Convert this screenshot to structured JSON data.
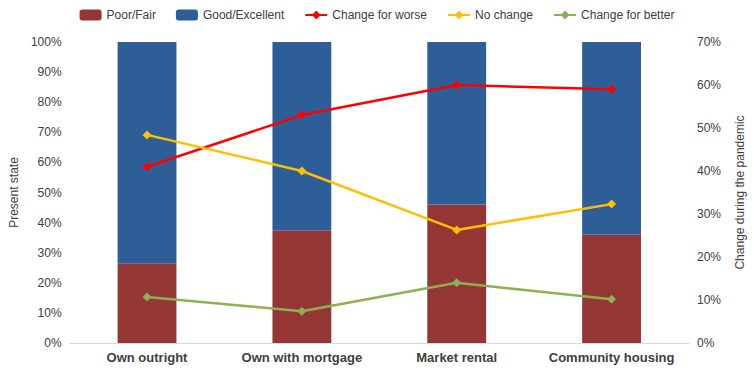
{
  "chart_data": {
    "type": "bar",
    "stacked": true,
    "grid": false,
    "legend": "top",
    "categories": [
      "Own outright",
      "Own with mortgage",
      "Market rental",
      "Community housing"
    ],
    "y_label": "Present state",
    "y2_label": "Change during the pandemic",
    "ylim": [
      0,
      100
    ],
    "yticks": [
      {
        "value": 0,
        "label": "0%"
      },
      {
        "value": 10,
        "label": "10%"
      },
      {
        "value": 20,
        "label": "20%"
      },
      {
        "value": 30,
        "label": "30%"
      },
      {
        "value": 40,
        "label": "40%"
      },
      {
        "value": 50,
        "label": "50%"
      },
      {
        "value": 60,
        "label": "60%"
      },
      {
        "value": 70,
        "label": "70%"
      },
      {
        "value": 80,
        "label": "80%"
      },
      {
        "value": 90,
        "label": "90%"
      },
      {
        "value": 100,
        "label": "100%"
      }
    ],
    "y2lim": [
      0,
      70
    ],
    "y2ticks": [
      {
        "value": 0,
        "label": "0%"
      },
      {
        "value": 10,
        "label": "10%"
      },
      {
        "value": 20,
        "label": "20%"
      },
      {
        "value": 30,
        "label": "30%"
      },
      {
        "value": 40,
        "label": "40%"
      },
      {
        "value": 50,
        "label": "50%"
      },
      {
        "value": 60,
        "label": "60%"
      },
      {
        "value": 70,
        "label": "70%"
      }
    ],
    "series": [
      {
        "name": "Poor/Fair",
        "type": "bar",
        "color": "#943634",
        "values": [
          26.5,
          37.5,
          46,
          36
        ]
      },
      {
        "name": "Good/Excellent",
        "type": "bar",
        "color": "#2e5e97",
        "values": [
          73.5,
          62.5,
          54,
          64
        ]
      },
      {
        "name": "Change for worse",
        "type": "line",
        "axis": "y2",
        "color": "#ff0000",
        "marker": "diamond",
        "values": [
          41,
          53,
          60,
          59
        ]
      },
      {
        "name": "No change",
        "type": "line",
        "axis": "y2",
        "color": "#ffc000",
        "marker": "diamond",
        "values": [
          48.4,
          40,
          26.3,
          32.3
        ]
      },
      {
        "name": "Change for better",
        "type": "line",
        "axis": "y2",
        "color": "#8db052",
        "marker": "diamond",
        "values": [
          10.7,
          7.4,
          14,
          10.2
        ]
      }
    ]
  }
}
